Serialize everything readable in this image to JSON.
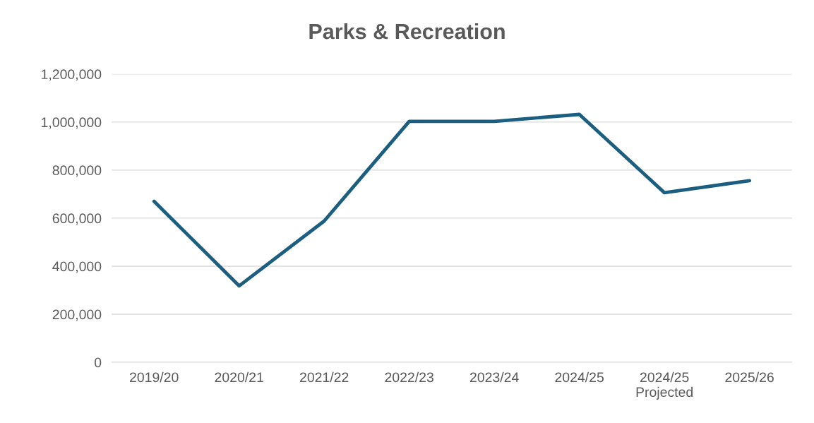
{
  "chart_data": {
    "type": "line",
    "title": "Parks & Recreation",
    "categories": [
      "2019/20",
      "2020/21",
      "2021/22",
      "2022/23",
      "2023/24",
      "2024/25",
      "2024/25\nProjected",
      "2025/26"
    ],
    "series": [
      {
        "color": "#1b5e80",
        "values": [
          670000,
          318000,
          588000,
          1003000,
          1003000,
          1032000,
          706000,
          756000
        ]
      }
    ],
    "ylim": [
      0,
      1200000
    ],
    "yticks": [
      0,
      {
        "value": 200000,
        "label": "200,000"
      },
      {
        "value": 400000,
        "label": "400,000"
      },
      {
        "value": 600000,
        "label": "600,000"
      },
      {
        "value": 800000,
        "label": "800,000"
      },
      {
        "value": 1000000,
        "label": "1,000,000"
      },
      {
        "value": 1200000,
        "label": "1,200,000"
      }
    ],
    "grid": "y",
    "legend": false,
    "marker": "none",
    "line_style": "solid"
  }
}
